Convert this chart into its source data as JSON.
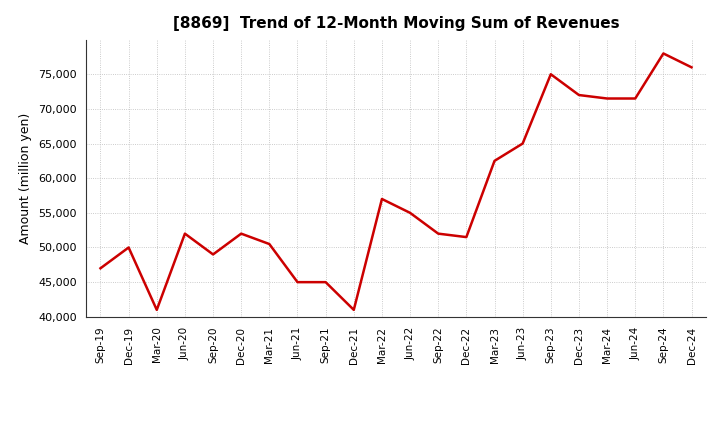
{
  "title": "[8869]  Trend of 12-Month Moving Sum of Revenues",
  "ylabel": "Amount (million yen)",
  "line_color": "#cc0000",
  "line_width": 1.8,
  "background_color": "#ffffff",
  "plot_bg_color": "#ffffff",
  "grid_color": "#bbbbbb",
  "ylim": [
    40000,
    80000
  ],
  "yticks": [
    40000,
    45000,
    50000,
    55000,
    60000,
    65000,
    70000,
    75000
  ],
  "labels": [
    "Sep-19",
    "Dec-19",
    "Mar-20",
    "Jun-20",
    "Sep-20",
    "Dec-20",
    "Mar-21",
    "Jun-21",
    "Sep-21",
    "Dec-21",
    "Mar-22",
    "Jun-22",
    "Sep-22",
    "Dec-22",
    "Mar-23",
    "Jun-23",
    "Sep-23",
    "Dec-23",
    "Mar-24",
    "Jun-24",
    "Sep-24",
    "Dec-24"
  ],
  "values": [
    47000,
    50000,
    41000,
    52000,
    49000,
    52000,
    50500,
    45000,
    45000,
    41000,
    57000,
    55000,
    52000,
    51500,
    62500,
    65000,
    75000,
    72000,
    71500,
    71500,
    78000,
    76000
  ]
}
